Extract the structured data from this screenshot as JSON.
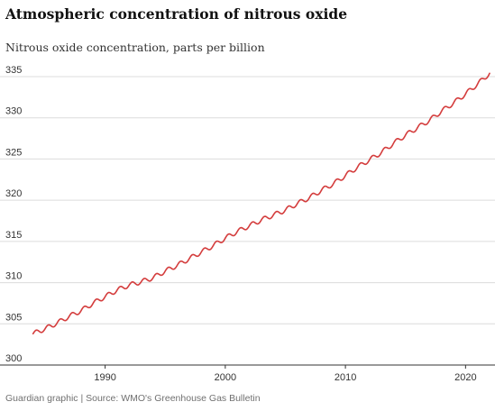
{
  "title": "Atmospheric concentration of nitrous oxide",
  "subtitle": "Nitrous oxide concentration, parts per billion",
  "source": "Guardian graphic | Source: WMO's Greenhouse Gas Bulletin",
  "chart_data": {
    "type": "line",
    "title": "Atmospheric concentration of nitrous oxide",
    "subtitle": "Nitrous oxide concentration, parts per billion",
    "xlabel": "",
    "ylabel": "",
    "xlim": [
      1983.5,
      2022
    ],
    "ylim": [
      300,
      335
    ],
    "x_ticks": [
      1990,
      2000,
      2010,
      2020
    ],
    "y_ticks": [
      300,
      305,
      310,
      315,
      320,
      325,
      330,
      335
    ],
    "grid": "horizontal",
    "line_color": "#d43d3d",
    "series": [
      {
        "x": [
          1984,
          1985,
          1986,
          1987,
          1988,
          1989,
          1990,
          1991,
          1992,
          1993,
          1994,
          1995,
          1996,
          1997,
          1998,
          1999,
          2000,
          2001,
          2002,
          2003,
          2004,
          2005,
          2006,
          2007,
          2008,
          2009,
          2010,
          2011,
          2012,
          2013,
          2014,
          2015,
          2016,
          2017,
          2018,
          2019,
          2020,
          2021,
          2022
        ],
        "values": [
          303.8,
          304.4,
          305.1,
          305.9,
          306.6,
          307.5,
          308.3,
          309.1,
          309.7,
          310.1,
          310.6,
          311.4,
          312.1,
          312.9,
          313.7,
          314.5,
          315.4,
          316.2,
          316.9,
          317.6,
          318.2,
          318.8,
          319.6,
          320.3,
          321.2,
          322.0,
          323.0,
          324.0,
          324.9,
          325.8,
          326.9,
          327.9,
          328.8,
          329.7,
          330.8,
          331.8,
          332.9,
          334.1,
          335.4
        ]
      }
    ]
  }
}
